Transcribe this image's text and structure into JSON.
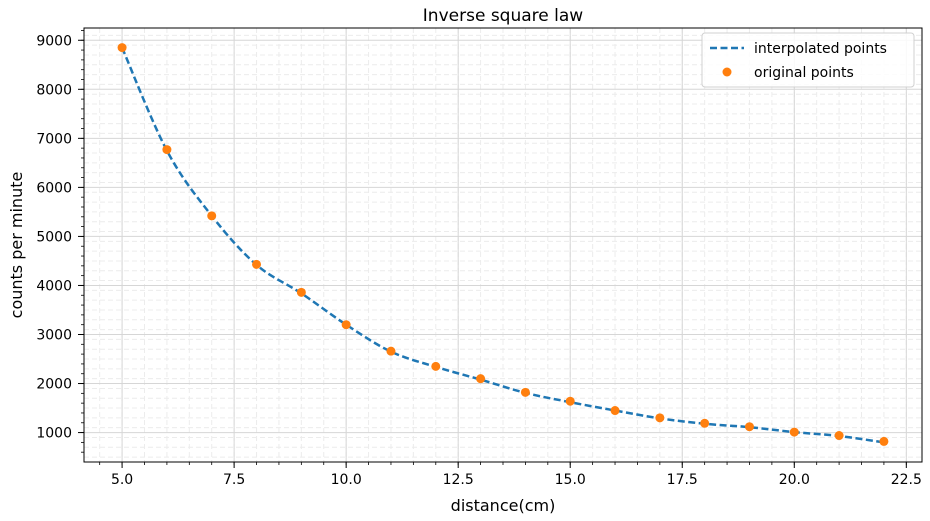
{
  "chart_data": {
    "type": "line",
    "title": "Inverse square law",
    "xlabel": "distance(cm)",
    "ylabel": "counts per minute",
    "xlim": [
      4.15,
      22.85
    ],
    "ylim": [
      400,
      9250
    ],
    "x_ticks": [
      5.0,
      7.5,
      10.0,
      12.5,
      15.0,
      17.5,
      20.0,
      22.5
    ],
    "x_tick_labels": [
      "5.0",
      "7.5",
      "10.0",
      "12.5",
      "15.0",
      "17.5",
      "20.0",
      "22.5"
    ],
    "y_ticks": [
      1000,
      2000,
      3000,
      4000,
      5000,
      6000,
      7000,
      8000,
      9000
    ],
    "y_tick_labels": [
      "1000",
      "2000",
      "3000",
      "4000",
      "5000",
      "6000",
      "7000",
      "8000",
      "9000"
    ],
    "grid": true,
    "legend_position": "top-right",
    "colors": {
      "interpolated": "#1f77b4",
      "original": "#ff7f0e"
    },
    "series": [
      {
        "name": "interpolated points",
        "style": "dashed-line",
        "x": [
          5,
          6,
          7,
          8,
          9,
          10,
          11,
          12,
          13,
          14,
          15,
          16,
          17,
          18,
          19,
          20,
          21,
          22
        ],
        "y": [
          8850,
          6750,
          5420,
          4420,
          3840,
          3200,
          2650,
          2340,
          2080,
          1810,
          1620,
          1450,
          1290,
          1180,
          1110,
          1010,
          930,
          800
        ]
      },
      {
        "name": "original points",
        "style": "markers",
        "x": [
          5,
          6,
          7,
          8,
          9,
          10,
          11,
          12,
          13,
          14,
          15,
          16,
          17,
          18,
          19,
          20,
          21,
          22
        ],
        "y": [
          8850,
          6770,
          5420,
          4430,
          3860,
          3200,
          2660,
          2350,
          2100,
          1820,
          1640,
          1450,
          1300,
          1190,
          1120,
          1010,
          940,
          820
        ]
      }
    ]
  }
}
